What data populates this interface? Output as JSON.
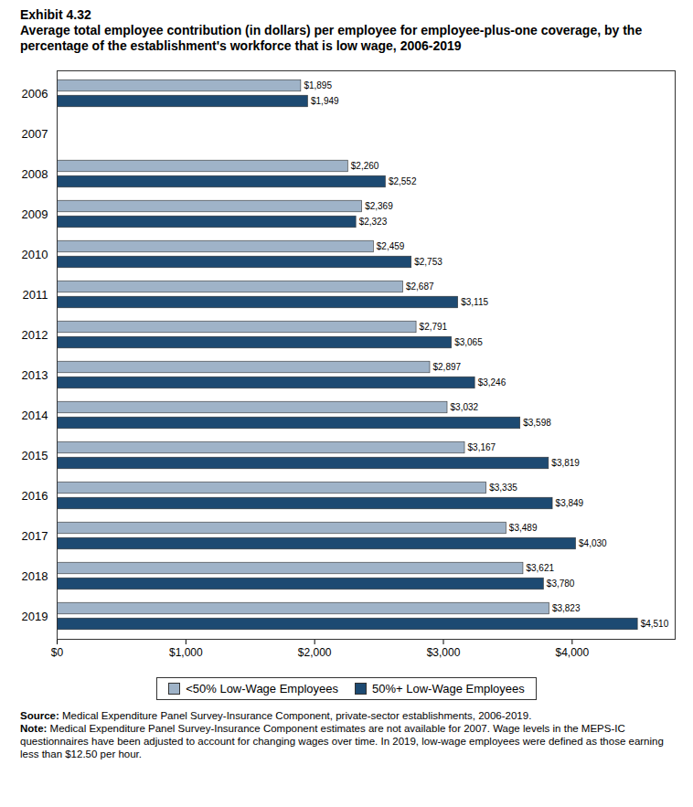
{
  "chart_data": {
    "type": "bar",
    "orientation": "horizontal",
    "title": "Exhibit 4.32",
    "subtitle": "Average total employee contribution (in dollars) per employee for employee-plus-one coverage, by the percentage of the establishment's workforce that is low wage, 2006-2019",
    "categories": [
      "2006",
      "2007",
      "2008",
      "2009",
      "2010",
      "2011",
      "2012",
      "2013",
      "2014",
      "2015",
      "2016",
      "2017",
      "2018",
      "2019"
    ],
    "series": [
      {
        "name": "<50% Low-Wage Employees",
        "color": "#9fb3c8",
        "values": [
          1895,
          null,
          2260,
          2369,
          2459,
          2687,
          2791,
          2897,
          3032,
          3167,
          3335,
          3489,
          3621,
          3823
        ],
        "value_labels": [
          "$1,895",
          null,
          "$2,260",
          "$2,369",
          "$2,459",
          "$2,687",
          "$2,791",
          "$2,897",
          "$3,032",
          "$3,167",
          "$3,335",
          "$3,489",
          "$3,621",
          "$3,823"
        ]
      },
      {
        "name": "50%+ Low-Wage Employees",
        "color": "#1d4a72",
        "values": [
          1949,
          null,
          2552,
          2323,
          2753,
          3115,
          3065,
          3246,
          3598,
          3819,
          3849,
          4030,
          3780,
          4510
        ],
        "value_labels": [
          "$1,949",
          null,
          "$2,552",
          "$2,323",
          "$2,753",
          "$3,115",
          "$3,065",
          "$3,246",
          "$3,598",
          "$3,819",
          "$3,849",
          "$4,030",
          "$3,780",
          "$4,510"
        ]
      }
    ],
    "xlim": [
      0,
      4800
    ],
    "xticks": [
      {
        "value": 0,
        "label": "$0"
      },
      {
        "value": 1000,
        "label": "$1,000"
      },
      {
        "value": 2000,
        "label": "$2,000"
      },
      {
        "value": 3000,
        "label": "$3,000"
      },
      {
        "value": 4000,
        "label": "$4,000"
      }
    ],
    "grid": false,
    "legend": "bottom",
    "data_labels": true,
    "footnotes": [
      {
        "label": "Source:",
        "text": "Medical Expenditure Panel Survey-Insurance Component, private-sector establishments, 2006-2019."
      },
      {
        "label": "Note:",
        "text": "Medical Expenditure Panel Survey-Insurance Component estimates are not available for 2007. Wage levels in the MEPS-IC questionnaires have been adjusted to account for changing wages over time. In 2019, low-wage employees were defined as those earning less than $12.50 per hour."
      }
    ]
  }
}
